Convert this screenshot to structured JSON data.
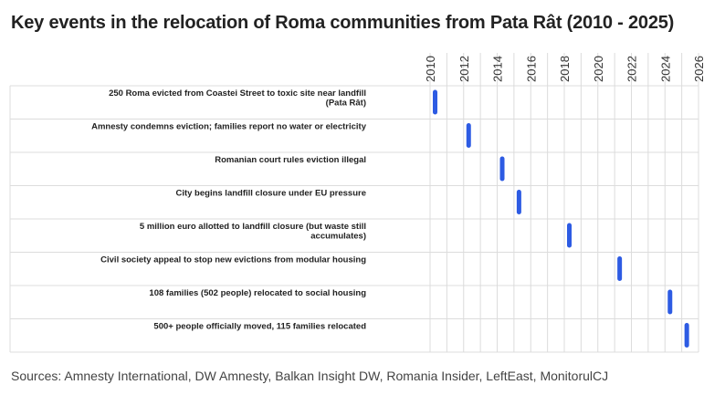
{
  "title": "Key events in the relocation of Roma communities from Pata Rât (2010 - 2025)",
  "source": "Sources: Amnesty International, DW Amnesty, Balkan Insight DW, Romania Insider, LeftEast, MonitorulCJ",
  "colors": {
    "marker": "#2d5be3",
    "grid": "#dcdcdc"
  },
  "chart_data": {
    "type": "scatter",
    "x_axis": {
      "min": 2010,
      "max": 2026,
      "ticks": [
        "2010",
        "2012",
        "2014",
        "2016",
        "2018",
        "2020",
        "2022",
        "2024",
        "2026"
      ]
    },
    "events": [
      {
        "label_lines": [
          "250 Roma evicted from Coastei Street to toxic site near landfill",
          "(Pata Rât)"
        ],
        "year": 2010.3
      },
      {
        "label_lines": [
          "Amnesty condemns eviction; families report no water or electricity"
        ],
        "year": 2012.3
      },
      {
        "label_lines": [
          "Romanian court rules eviction illegal"
        ],
        "year": 2014.3
      },
      {
        "label_lines": [
          "City begins landfill closure under EU pressure"
        ],
        "year": 2015.3
      },
      {
        "label_lines": [
          "5 million euro allotted to landfill closure (but waste still",
          "accumulates)"
        ],
        "year": 2018.3
      },
      {
        "label_lines": [
          "Civil society appeal to stop new evictions from modular housing"
        ],
        "year": 2021.3
      },
      {
        "label_lines": [
          "108 families (502 people) relocated to social housing"
        ],
        "year": 2024.3
      },
      {
        "label_lines": [
          "500+ people officially moved, 115 families relocated"
        ],
        "year": 2025.3
      }
    ]
  }
}
